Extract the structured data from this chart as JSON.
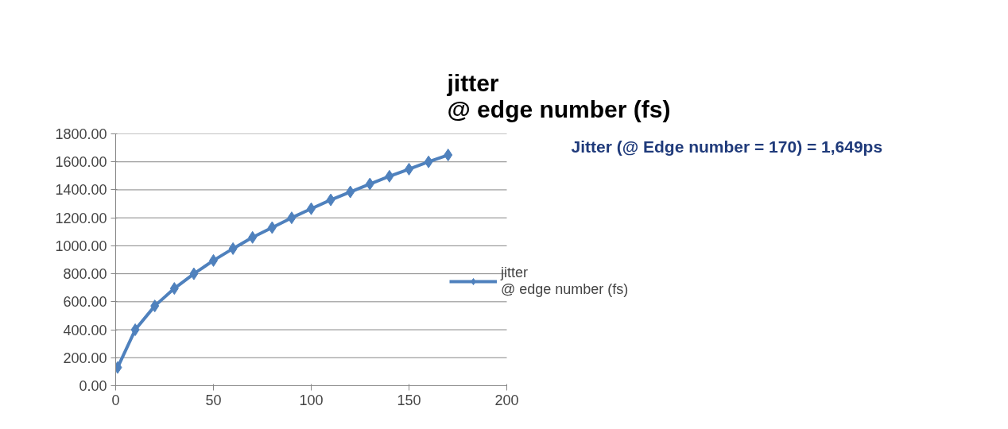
{
  "chart_data": {
    "type": "line",
    "title": "jitter\n@ edge number (fs)",
    "x": [
      1,
      10,
      20,
      30,
      40,
      50,
      60,
      70,
      80,
      90,
      100,
      110,
      120,
      130,
      140,
      150,
      160,
      170
    ],
    "series": [
      {
        "name": "jitter\n@ edge number (fs)",
        "color": "#4f81bd",
        "values": [
          130,
          400,
          570,
          695,
          800,
          895,
          980,
          1060,
          1130,
          1200,
          1265,
          1328,
          1385,
          1442,
          1497,
          1548,
          1600,
          1649
        ]
      }
    ],
    "xlim": [
      0,
      200
    ],
    "xticks": [
      0,
      50,
      100,
      150,
      200
    ],
    "ylim": [
      0,
      1800
    ],
    "yticks": [
      {
        "value": 0,
        "label": "0.00"
      },
      {
        "value": 200,
        "label": "200.00"
      },
      {
        "value": 400,
        "label": "400.00"
      },
      {
        "value": 600,
        "label": "600.00"
      },
      {
        "value": 800,
        "label": "800.00"
      },
      {
        "value": 1000,
        "label": "1000.00"
      },
      {
        "value": 1200,
        "label": "1200.00"
      },
      {
        "value": 1400,
        "label": "1400.00"
      },
      {
        "value": 1600,
        "label": "1600.00"
      },
      {
        "value": 1800,
        "label": "1800.00"
      }
    ],
    "annotations": [
      "Jitter (@ Edge number = 170) = 1,649ps"
    ],
    "grid": "y",
    "legend": "right",
    "marker": "diamond",
    "line_style": "solid"
  }
}
